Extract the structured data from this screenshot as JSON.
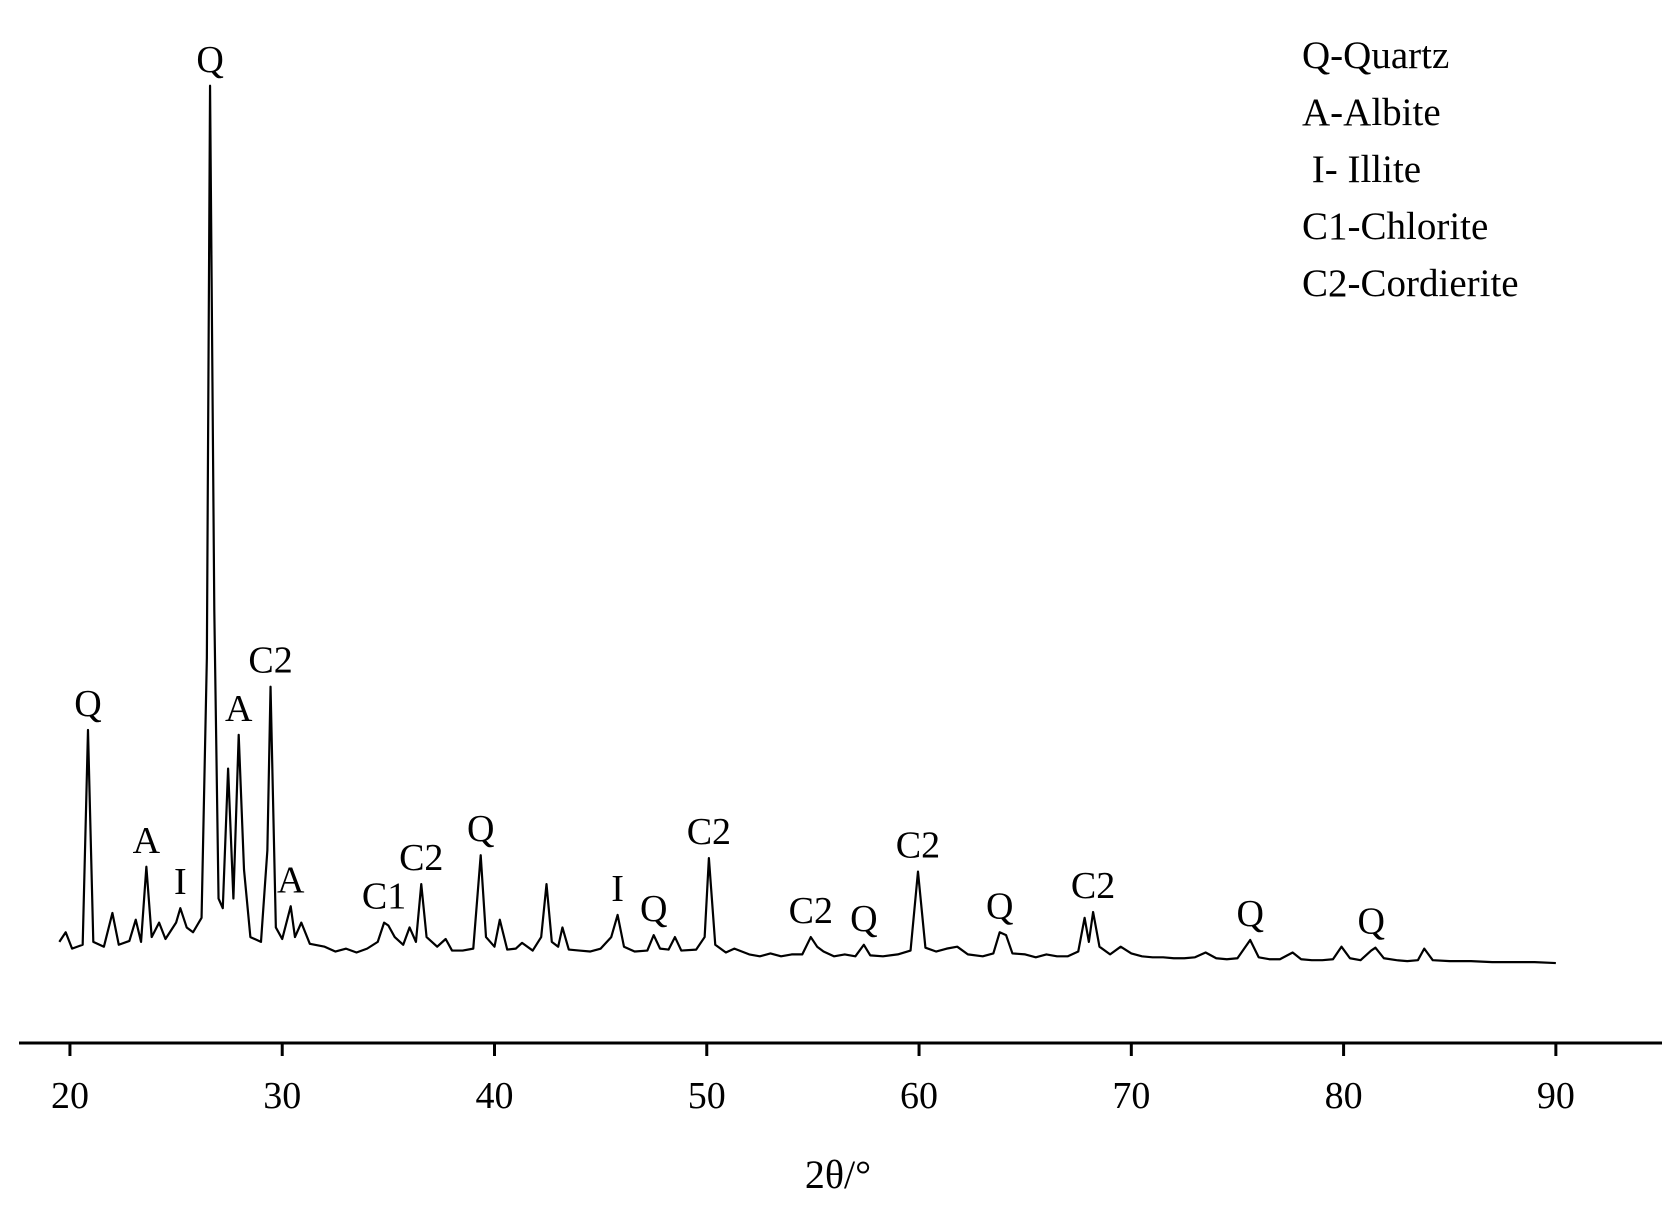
{
  "chart_data": {
    "type": "line",
    "xlabel": "2θ/°",
    "color": "#000000",
    "xlim": [
      17.6,
      95
    ],
    "ylim": [
      0,
      100
    ],
    "xticks": [
      20,
      30,
      40,
      50,
      60,
      70,
      80,
      90
    ],
    "x": [
      19.5,
      19.8,
      20.1,
      20.6,
      20.85,
      21.1,
      21.6,
      22.0,
      22.3,
      22.8,
      23.1,
      23.35,
      23.6,
      23.85,
      24.2,
      24.5,
      25.0,
      25.2,
      25.5,
      25.8,
      26.2,
      26.45,
      26.6,
      26.8,
      27.0,
      27.2,
      27.45,
      27.7,
      27.95,
      28.2,
      28.5,
      29.0,
      29.3,
      29.45,
      29.7,
      30.0,
      30.4,
      30.6,
      30.9,
      31.3,
      32.0,
      32.5,
      33.0,
      33.5,
      34.0,
      34.5,
      34.8,
      35.0,
      35.3,
      35.7,
      36.0,
      36.3,
      36.55,
      36.8,
      37.3,
      37.7,
      38.0,
      38.5,
      39.0,
      39.35,
      39.6,
      40.0,
      40.25,
      40.6,
      41.0,
      41.3,
      41.8,
      42.2,
      42.45,
      42.7,
      43.0,
      43.2,
      43.5,
      44.0,
      44.5,
      45.0,
      45.5,
      45.8,
      46.1,
      46.6,
      47.2,
      47.5,
      47.8,
      48.2,
      48.5,
      48.8,
      49.5,
      49.9,
      50.1,
      50.4,
      50.9,
      51.3,
      52.0,
      52.5,
      53.0,
      53.5,
      54.0,
      54.5,
      54.9,
      55.2,
      55.5,
      56.0,
      56.5,
      57.0,
      57.4,
      57.7,
      58.3,
      59.0,
      59.6,
      59.95,
      60.3,
      60.8,
      61.3,
      61.8,
      62.3,
      63.0,
      63.5,
      63.8,
      64.1,
      64.4,
      65.0,
      65.5,
      66.0,
      66.5,
      67.0,
      67.5,
      67.8,
      68.0,
      68.2,
      68.5,
      69.0,
      69.5,
      70.0,
      70.5,
      71.0,
      71.5,
      72.0,
      72.5,
      73.0,
      73.5,
      74.0,
      74.5,
      75.0,
      75.6,
      76.0,
      76.5,
      77.0,
      77.6,
      78.0,
      78.5,
      79.0,
      79.5,
      79.9,
      80.3,
      80.8,
      81.3,
      81.5,
      81.9,
      82.5,
      83.0,
      83.5,
      83.8,
      84.2,
      85.0,
      86.0,
      87.0,
      88.0,
      89.0,
      90.0
    ],
    "values": [
      10.5,
      11.5,
      9.8,
      10.2,
      32.5,
      10.5,
      10.0,
      13.5,
      10.2,
      10.6,
      12.8,
      10.5,
      18.3,
      11,
      12.5,
      10.8,
      12.5,
      14.0,
      12.0,
      11.5,
      13,
      40,
      99.4,
      45,
      15,
      14,
      28.5,
      15,
      32,
      18,
      11,
      10.5,
      20,
      37,
      12,
      10.8,
      14.2,
      11,
      12.5,
      10.3,
      10.0,
      9.5,
      9.8,
      9.4,
      9.8,
      10.5,
      12.5,
      12.2,
      11,
      10.2,
      12.0,
      10.5,
      16.5,
      11,
      10,
      10.8,
      9.6,
      9.6,
      9.8,
      19.5,
      11,
      10,
      12.8,
      9.7,
      9.8,
      10.4,
      9.6,
      11,
      16.5,
      10.5,
      10,
      12.0,
      9.7,
      9.6,
      9.5,
      9.8,
      11,
      13.3,
      10,
      9.5,
      9.6,
      11.2,
      9.8,
      9.7,
      11.0,
      9.6,
      9.7,
      11,
      19.2,
      10.2,
      9.4,
      9.8,
      9.2,
      9.0,
      9.3,
      9.0,
      9.2,
      9.2,
      11.0,
      10,
      9.5,
      9.0,
      9.2,
      9.0,
      10.2,
      9.1,
      9.0,
      9.2,
      9.6,
      17.8,
      9.9,
      9.5,
      9.8,
      10,
      9.2,
      9.0,
      9.3,
      11.5,
      11.2,
      9.3,
      9.2,
      8.9,
      9.2,
      9.0,
      9.0,
      9.5,
      13.0,
      10.5,
      13.6,
      10,
      9.2,
      10.0,
      9.3,
      9.0,
      8.9,
      8.9,
      8.8,
      8.8,
      8.9,
      9.4,
      8.8,
      8.7,
      8.8,
      10.7,
      8.9,
      8.7,
      8.7,
      9.4,
      8.7,
      8.6,
      8.6,
      8.7,
      10.0,
      8.8,
      8.6,
      9.6,
      9.9,
      8.8,
      8.6,
      8.5,
      8.6,
      9.8,
      8.6,
      8.5,
      8.5,
      8.4,
      8.4,
      8.4,
      8.3
    ],
    "annotations": [
      {
        "text": "Q",
        "x": 20.85
      },
      {
        "text": "A",
        "x": 23.6
      },
      {
        "text": "I",
        "x": 25.2
      },
      {
        "text": "Q",
        "x": 26.6
      },
      {
        "text": "A",
        "x": 27.95
      },
      {
        "text": "C2",
        "x": 29.45
      },
      {
        "text": "A",
        "x": 30.4
      },
      {
        "text": "C1",
        "x": 34.8
      },
      {
        "text": "C2",
        "x": 36.55
      },
      {
        "text": "Q",
        "x": 39.35
      },
      {
        "text": "I",
        "x": 45.8
      },
      {
        "text": "Q",
        "x": 47.5
      },
      {
        "text": "C2",
        "x": 50.1
      },
      {
        "text": "C2",
        "x": 54.9
      },
      {
        "text": "Q",
        "x": 57.4
      },
      {
        "text": "C2",
        "x": 59.95
      },
      {
        "text": "Q",
        "x": 63.8
      },
      {
        "text": "C2",
        "x": 68.2
      },
      {
        "text": "Q",
        "x": 75.6
      },
      {
        "text": "Q",
        "x": 81.3
      }
    ],
    "legend": [
      "Q-Quartz",
      "A-Albite",
      " I- Illite",
      "C1-Chlorite",
      "C2-Cordierite"
    ]
  }
}
